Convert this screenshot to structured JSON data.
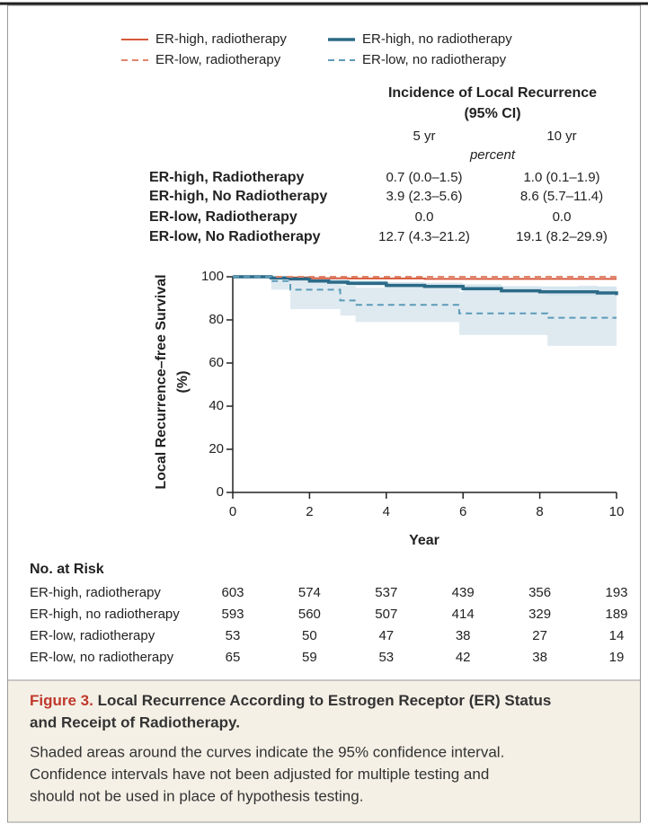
{
  "chart_data": {
    "type": "line",
    "step": true,
    "x_label": "Year",
    "y_label": [
      "Local Recurrence–free Survival",
      "(%)"
    ],
    "xlim": [
      0,
      10
    ],
    "xticks": [
      0,
      2,
      4,
      6,
      8,
      10
    ],
    "ylim": [
      0,
      100
    ],
    "yticks": [
      0,
      20,
      40,
      60,
      80,
      100
    ],
    "series": [
      {
        "name": "ER-high, radiotherapy",
        "color": "#d6583a",
        "dash": false,
        "width": 2,
        "x": [
          0,
          1,
          2,
          3,
          5,
          10
        ],
        "values": [
          100,
          99.7,
          99.3,
          99.2,
          99,
          99
        ]
      },
      {
        "name": "ER-high, no radiotherapy",
        "color": "#2b6a87",
        "dash": false,
        "width": 3.5,
        "band_color": "#d7e6ee",
        "x": [
          0,
          0.5,
          1,
          1.5,
          2,
          2.5,
          3,
          4,
          5,
          6,
          7,
          8,
          9,
          9.5,
          10
        ],
        "values": [
          100,
          100,
          99.5,
          99,
          98,
          97.5,
          97,
          96,
          95.5,
          94.5,
          93.5,
          93,
          93,
          92.5,
          91.5
        ],
        "lower": [
          100,
          100,
          99,
          98.3,
          97,
          96.3,
          95.7,
          94.5,
          93.8,
          92.5,
          91.3,
          90.5,
          90.2,
          89.5,
          88.5
        ],
        "upper": [
          100,
          100,
          100,
          99.7,
          99,
          98.7,
          98.3,
          97.5,
          97.2,
          96.5,
          95.7,
          95.5,
          95.8,
          95.5,
          94.5
        ]
      },
      {
        "name": "ER-low, radiotherapy",
        "color": "#e0846a",
        "dash": true,
        "width": 2,
        "x": [
          0,
          10
        ],
        "values": [
          100,
          100
        ]
      },
      {
        "name": "ER-low, no radiotherapy",
        "color": "#5b9bb8",
        "dash": true,
        "width": 2,
        "band_color": "#dfeaf0",
        "x": [
          0,
          1,
          1.5,
          2.8,
          3.2,
          5.9,
          8.2,
          10
        ],
        "values": [
          100,
          98,
          94,
          89,
          87,
          83,
          81,
          81
        ],
        "lower": [
          100,
          94,
          85,
          82,
          79,
          73,
          68,
          68
        ],
        "upper": [
          100,
          100,
          99,
          96,
          95,
          93,
          91,
          91
        ]
      }
    ],
    "incidence_table": {
      "title": [
        "Incidence of Local Recurrence",
        "(95% CI)"
      ],
      "columns": [
        "5 yr",
        "10 yr"
      ],
      "unit": "percent",
      "rows": [
        {
          "label": "ER-high, Radiotherapy",
          "values": [
            "0.7 (0.0–1.5)",
            "1.0 (0.1–1.9)"
          ]
        },
        {
          "label": "ER-high, No Radiotherapy",
          "values": [
            "3.9 (2.3–5.6)",
            "8.6 (5.7–11.4)"
          ]
        },
        {
          "label": "ER-low, Radiotherapy",
          "values": [
            "0.0",
            "0.0"
          ]
        },
        {
          "label": "ER-low, No Radiotherapy",
          "values": [
            "12.7 (4.3–21.2)",
            "19.1 (8.2–29.9)"
          ]
        }
      ]
    },
    "risk_table": {
      "title": "No. at Risk",
      "rows": [
        {
          "label": "ER-high, radiotherapy",
          "values": [
            603,
            574,
            537,
            439,
            356,
            193
          ]
        },
        {
          "label": "ER-high, no radiotherapy",
          "values": [
            593,
            560,
            507,
            414,
            329,
            189
          ]
        },
        {
          "label": "ER-low, radiotherapy",
          "values": [
            53,
            50,
            47,
            38,
            27,
            14
          ]
        },
        {
          "label": "ER-low, no radiotherapy",
          "values": [
            65,
            59,
            53,
            42,
            38,
            19
          ]
        }
      ]
    }
  },
  "caption": {
    "label": "Figure 3.",
    "title_lines": [
      "Local Recurrence According to Estrogen Receptor (ER) Status",
      "and Receipt of Radiotherapy."
    ],
    "body_lines": [
      "Shaded areas around the curves indicate the 95% confidence interval.",
      "Confidence intervals have not been adjusted for multiple testing and",
      "should not be used in place of hypothesis testing."
    ]
  }
}
